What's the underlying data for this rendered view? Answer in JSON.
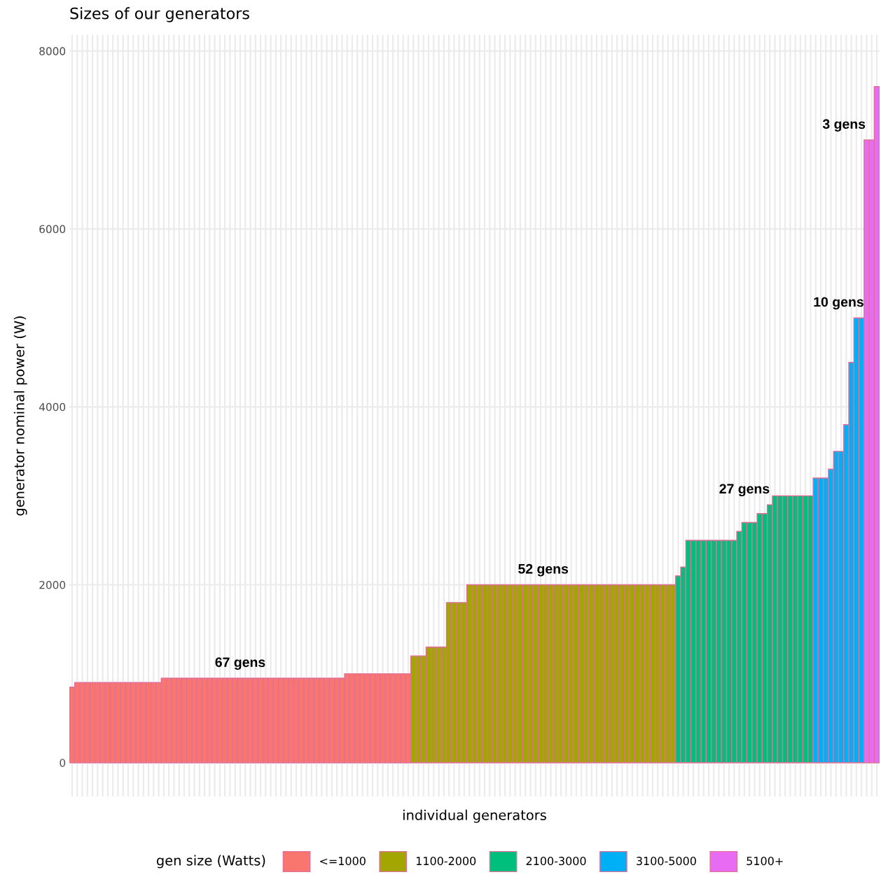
{
  "chart_data": {
    "type": "bar",
    "title": "Sizes of our generators",
    "xlabel": "individual generators",
    "ylabel": "generator nominal power (W)",
    "legend_title": "gen size (Watts)",
    "legend": "bottom",
    "grid": true,
    "ylim": [
      -380,
      8180
    ],
    "yticks": [
      0,
      2000,
      4000,
      6000,
      8000
    ],
    "categories": [
      null,
      null,
      null,
      null,
      null,
      null,
      null,
      null,
      null,
      null,
      null,
      null,
      null,
      null,
      null,
      null,
      null,
      null,
      null,
      null,
      null,
      null,
      null,
      null,
      null,
      null,
      null,
      null,
      null,
      null,
      null,
      null,
      null,
      null,
      null,
      null,
      null,
      null,
      null,
      null,
      null,
      null,
      null,
      null,
      null,
      null,
      null,
      null,
      null,
      null,
      null,
      null,
      null,
      null,
      null,
      null,
      null,
      null,
      null,
      null,
      null,
      null,
      null,
      null,
      null,
      null,
      null,
      null,
      null,
      null,
      null,
      null,
      null,
      null,
      null,
      null,
      null,
      null,
      null,
      null,
      null,
      null,
      null,
      null,
      null,
      null,
      null,
      null,
      null,
      null,
      null,
      null,
      null,
      null,
      null,
      null,
      null,
      null,
      null,
      null,
      null,
      null,
      null,
      null,
      null,
      null,
      null,
      null,
      null,
      null,
      null,
      null,
      null,
      null,
      null,
      null,
      null,
      null,
      null,
      null,
      null,
      null,
      null,
      null,
      null,
      null,
      null,
      null,
      null,
      null,
      null,
      null,
      null,
      null,
      null,
      null,
      null,
      null,
      null,
      null,
      null,
      null,
      null,
      null,
      null,
      null,
      null,
      null,
      null,
      null,
      null,
      null,
      null,
      null,
      null,
      null,
      null,
      null,
      null
    ],
    "series": [
      {
        "name": "<=1000",
        "color": "#f8766d",
        "values": [
          850,
          900,
          900,
          900,
          900,
          900,
          900,
          900,
          900,
          900,
          900,
          900,
          900,
          900,
          900,
          900,
          900,
          900,
          950,
          950,
          950,
          950,
          950,
          950,
          950,
          950,
          950,
          950,
          950,
          950,
          950,
          950,
          950,
          950,
          950,
          950,
          950,
          950,
          950,
          950,
          950,
          950,
          950,
          950,
          950,
          950,
          950,
          950,
          950,
          950,
          950,
          950,
          950,
          950,
          1000,
          1000,
          1000,
          1000,
          1000,
          1000,
          1000,
          1000,
          1000,
          1000,
          1000,
          1000,
          1000,
          null,
          null,
          null,
          null,
          null,
          null,
          null,
          null,
          null,
          null,
          null,
          null,
          null,
          null,
          null,
          null,
          null,
          null,
          null,
          null,
          null,
          null,
          null,
          null,
          null,
          null,
          null,
          null,
          null,
          null,
          null,
          null,
          null,
          null,
          null,
          null,
          null,
          null,
          null,
          null,
          null,
          null,
          null,
          null,
          null,
          null,
          null,
          null,
          null,
          null,
          null,
          null,
          null,
          null,
          null,
          null,
          null,
          null,
          null,
          null,
          null,
          null,
          null,
          null,
          null,
          null,
          null,
          null,
          null,
          null,
          null,
          null,
          null,
          null,
          null,
          null,
          null,
          null,
          null,
          null,
          null,
          null,
          null,
          null,
          null,
          null,
          null,
          null,
          null,
          null,
          null,
          null
        ]
      },
      {
        "name": "1100-2000",
        "color": "#a3a500",
        "values": [
          null,
          null,
          null,
          null,
          null,
          null,
          null,
          null,
          null,
          null,
          null,
          null,
          null,
          null,
          null,
          null,
          null,
          null,
          null,
          null,
          null,
          null,
          null,
          null,
          null,
          null,
          null,
          null,
          null,
          null,
          null,
          null,
          null,
          null,
          null,
          null,
          null,
          null,
          null,
          null,
          null,
          null,
          null,
          null,
          null,
          null,
          null,
          null,
          null,
          null,
          null,
          null,
          null,
          null,
          null,
          null,
          null,
          null,
          null,
          null,
          null,
          null,
          null,
          null,
          null,
          null,
          null,
          1200,
          1200,
          1200,
          1300,
          1300,
          1300,
          1300,
          1800,
          1800,
          1800,
          1800,
          2000,
          2000,
          2000,
          2000,
          2000,
          2000,
          2000,
          2000,
          2000,
          2000,
          2000,
          2000,
          2000,
          2000,
          2000,
          2000,
          2000,
          2000,
          2000,
          2000,
          2000,
          2000,
          2000,
          2000,
          2000,
          2000,
          2000,
          2000,
          2000,
          2000,
          2000,
          2000,
          2000,
          2000,
          2000,
          2000,
          2000,
          2000,
          2000,
          2000,
          2000,
          null,
          null,
          null,
          null,
          null,
          null,
          null,
          null,
          null,
          null,
          null,
          null,
          null,
          null,
          null,
          null,
          null,
          null,
          null,
          null,
          null,
          null,
          null,
          null,
          null,
          null,
          null,
          null,
          null,
          null,
          null,
          null,
          null,
          null,
          null,
          null,
          null,
          null,
          null,
          null
        ]
      },
      {
        "name": "2100-3000",
        "color": "#00bf7d",
        "values": [
          null,
          null,
          null,
          null,
          null,
          null,
          null,
          null,
          null,
          null,
          null,
          null,
          null,
          null,
          null,
          null,
          null,
          null,
          null,
          null,
          null,
          null,
          null,
          null,
          null,
          null,
          null,
          null,
          null,
          null,
          null,
          null,
          null,
          null,
          null,
          null,
          null,
          null,
          null,
          null,
          null,
          null,
          null,
          null,
          null,
          null,
          null,
          null,
          null,
          null,
          null,
          null,
          null,
          null,
          null,
          null,
          null,
          null,
          null,
          null,
          null,
          null,
          null,
          null,
          null,
          null,
          null,
          null,
          null,
          null,
          null,
          null,
          null,
          null,
          null,
          null,
          null,
          null,
          null,
          null,
          null,
          null,
          null,
          null,
          null,
          null,
          null,
          null,
          null,
          null,
          null,
          null,
          null,
          null,
          null,
          null,
          null,
          null,
          null,
          null,
          null,
          null,
          null,
          null,
          null,
          null,
          null,
          null,
          null,
          null,
          null,
          null,
          null,
          null,
          null,
          null,
          null,
          null,
          null,
          2100,
          2200,
          2500,
          2500,
          2500,
          2500,
          2500,
          2500,
          2500,
          2500,
          2500,
          2500,
          2600,
          2700,
          2700,
          2700,
          2800,
          2800,
          2900,
          3000,
          3000,
          3000,
          3000,
          3000,
          3000,
          3000,
          3000,
          null,
          null,
          null,
          null,
          null,
          null,
          null,
          null,
          null,
          null,
          null,
          null,
          null
        ]
      },
      {
        "name": "3100-5000",
        "color": "#00b0f6",
        "values": [
          null,
          null,
          null,
          null,
          null,
          null,
          null,
          null,
          null,
          null,
          null,
          null,
          null,
          null,
          null,
          null,
          null,
          null,
          null,
          null,
          null,
          null,
          null,
          null,
          null,
          null,
          null,
          null,
          null,
          null,
          null,
          null,
          null,
          null,
          null,
          null,
          null,
          null,
          null,
          null,
          null,
          null,
          null,
          null,
          null,
          null,
          null,
          null,
          null,
          null,
          null,
          null,
          null,
          null,
          null,
          null,
          null,
          null,
          null,
          null,
          null,
          null,
          null,
          null,
          null,
          null,
          null,
          null,
          null,
          null,
          null,
          null,
          null,
          null,
          null,
          null,
          null,
          null,
          null,
          null,
          null,
          null,
          null,
          null,
          null,
          null,
          null,
          null,
          null,
          null,
          null,
          null,
          null,
          null,
          null,
          null,
          null,
          null,
          null,
          null,
          null,
          null,
          null,
          null,
          null,
          null,
          null,
          null,
          null,
          null,
          null,
          null,
          null,
          null,
          null,
          null,
          null,
          null,
          null,
          null,
          null,
          null,
          null,
          null,
          null,
          null,
          null,
          null,
          null,
          null,
          null,
          null,
          null,
          null,
          null,
          null,
          null,
          null,
          null,
          null,
          null,
          null,
          null,
          null,
          null,
          null,
          3200,
          3200,
          3200,
          3300,
          3500,
          3500,
          3800,
          4500,
          5000,
          5000,
          null,
          null,
          null
        ]
      },
      {
        "name": "5100+",
        "color": "#e76bf3",
        "values": [
          null,
          null,
          null,
          null,
          null,
          null,
          null,
          null,
          null,
          null,
          null,
          null,
          null,
          null,
          null,
          null,
          null,
          null,
          null,
          null,
          null,
          null,
          null,
          null,
          null,
          null,
          null,
          null,
          null,
          null,
          null,
          null,
          null,
          null,
          null,
          null,
          null,
          null,
          null,
          null,
          null,
          null,
          null,
          null,
          null,
          null,
          null,
          null,
          null,
          null,
          null,
          null,
          null,
          null,
          null,
          null,
          null,
          null,
          null,
          null,
          null,
          null,
          null,
          null,
          null,
          null,
          null,
          null,
          null,
          null,
          null,
          null,
          null,
          null,
          null,
          null,
          null,
          null,
          null,
          null,
          null,
          null,
          null,
          null,
          null,
          null,
          null,
          null,
          null,
          null,
          null,
          null,
          null,
          null,
          null,
          null,
          null,
          null,
          null,
          null,
          null,
          null,
          null,
          null,
          null,
          null,
          null,
          null,
          null,
          null,
          null,
          null,
          null,
          null,
          null,
          null,
          null,
          null,
          null,
          null,
          null,
          null,
          null,
          null,
          null,
          null,
          null,
          null,
          null,
          null,
          null,
          null,
          null,
          null,
          null,
          null,
          null,
          null,
          null,
          null,
          null,
          null,
          null,
          null,
          null,
          null,
          null,
          null,
          null,
          null,
          null,
          null,
          null,
          null,
          null,
          null,
          7000,
          7000,
          7600
        ]
      }
    ],
    "annotations": [
      "67 gens",
      "52 gens",
      "27 gens",
      "10 gens",
      "3 gens"
    ]
  }
}
